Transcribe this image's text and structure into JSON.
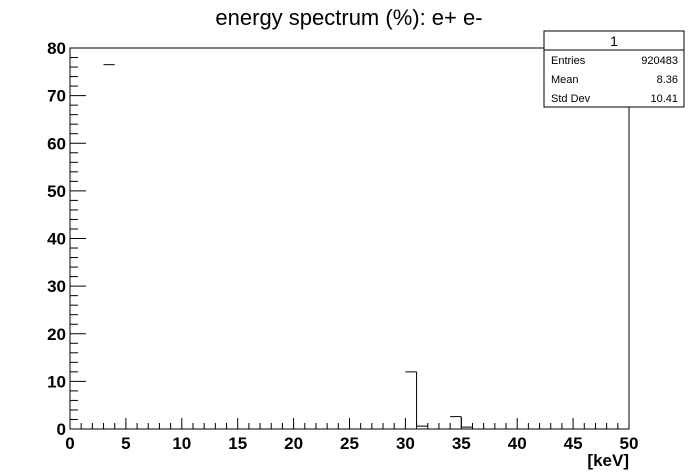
{
  "chart_data": {
    "type": "bar",
    "title": "energy spectrum (%): e+ e-",
    "xlabel": "[keV]",
    "ylabel": "",
    "xlim": [
      0,
      50
    ],
    "ylim": [
      0,
      80
    ],
    "x_ticks": [
      "0",
      "5",
      "10",
      "15",
      "20",
      "25",
      "30",
      "35",
      "40",
      "45",
      "50"
    ],
    "y_ticks": [
      "0",
      "10",
      "20",
      "30",
      "40",
      "50",
      "60",
      "70",
      "80"
    ],
    "bin_width": 1,
    "bins": [
      {
        "x_low": 3,
        "x_high": 4,
        "value": 76.5
      },
      {
        "x_low": 30,
        "x_high": 31,
        "value": 12.0
      },
      {
        "x_low": 31,
        "x_high": 32,
        "value": 0.6
      },
      {
        "x_low": 34,
        "x_high": 35,
        "value": 2.6
      },
      {
        "x_low": 35,
        "x_high": 36,
        "value": 0.4
      }
    ],
    "grid": false,
    "legend": "none"
  },
  "stats_box": {
    "name": "1",
    "rows": [
      {
        "label": "Entries",
        "value": "920483"
      },
      {
        "label": "Mean",
        "value": "8.36"
      },
      {
        "label": "Std Dev",
        "value": "10.41"
      }
    ]
  }
}
